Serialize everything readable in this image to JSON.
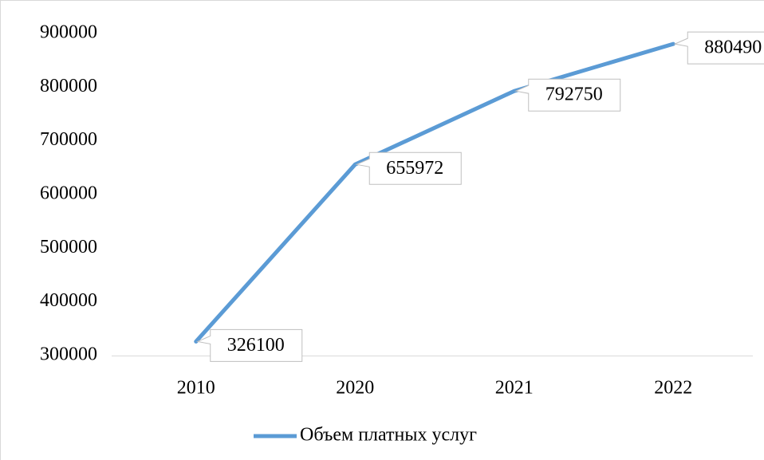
{
  "chart_data": {
    "type": "line",
    "categories": [
      "2010",
      "2020",
      "2021",
      "2022"
    ],
    "series": [
      {
        "name": "Объем платных услуг",
        "color": "#5b9bd5",
        "values": [
          326100,
          655972,
          792750,
          880490
        ]
      }
    ],
    "ylim": [
      300000,
      900000
    ],
    "yticks": [
      300000,
      400000,
      500000,
      600000,
      700000,
      800000,
      900000
    ],
    "grid": false,
    "legend": "bottom",
    "data_labels": true
  }
}
